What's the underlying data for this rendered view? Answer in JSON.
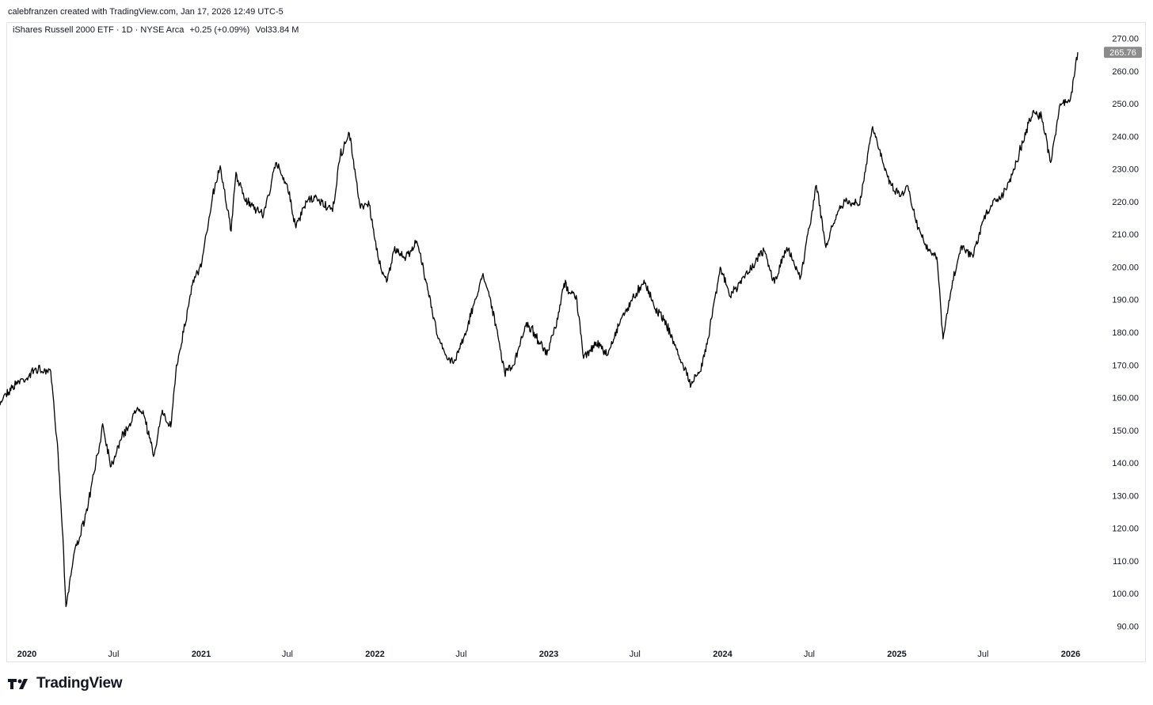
{
  "header": {
    "caption": "calebfranzen created with TradingView.com, Jan 17, 2026 12:49 UTC-5"
  },
  "legend": {
    "symbol": "iShares Russell 2000 ETF · 1D · NYSE Arca",
    "change": "+0.25 (+0.09%)",
    "volume": "Vol33.84 M"
  },
  "last_price_label": "265.76",
  "footer": {
    "brand": "TradingView",
    "logo_icon": "tradingview-logo-icon"
  },
  "colors": {
    "line": "#000000",
    "price_badge": "#8c8c8c",
    "border": "#e0e3eb"
  },
  "chart_data": {
    "type": "line",
    "ylim": [
      85,
      275
    ],
    "y_ticks": [
      90,
      100,
      110,
      120,
      130,
      140,
      150,
      160,
      170,
      180,
      190,
      200,
      210,
      220,
      230,
      240,
      250,
      260,
      270
    ],
    "y_tick_labels": [
      "90.00",
      "100.00",
      "110.00",
      "120.00",
      "130.00",
      "140.00",
      "150.00",
      "160.00",
      "170.00",
      "180.00",
      "190.00",
      "200.00",
      "210.00",
      "220.00",
      "230.00",
      "240.00",
      "250.00",
      "260.00",
      "270.00"
    ],
    "x_tick_labels": [
      {
        "label": "2020",
        "x": "2020-01-01",
        "major": true
      },
      {
        "label": "Jul",
        "x": "2020-07-01",
        "major": false
      },
      {
        "label": "2021",
        "x": "2021-01-01",
        "major": true
      },
      {
        "label": "Jul",
        "x": "2021-07-01",
        "major": false
      },
      {
        "label": "2022",
        "x": "2022-01-01",
        "major": true
      },
      {
        "label": "Jul",
        "x": "2022-07-01",
        "major": false
      },
      {
        "label": "2023",
        "x": "2023-01-01",
        "major": true
      },
      {
        "label": "Jul",
        "x": "2023-07-01",
        "major": false
      },
      {
        "label": "2024",
        "x": "2024-01-01",
        "major": true
      },
      {
        "label": "Jul",
        "x": "2024-07-01",
        "major": false
      },
      {
        "label": "2025",
        "x": "2025-01-01",
        "major": true
      },
      {
        "label": "Jul",
        "x": "2025-07-01",
        "major": false
      },
      {
        "label": "2026",
        "x": "2026-01-01",
        "major": true
      }
    ],
    "series": [
      {
        "x": [
          "2019-11-01",
          "2019-11-15",
          "2019-12-01",
          "2019-12-15",
          "2020-01-01",
          "2020-01-20",
          "2020-02-01",
          "2020-02-20",
          "2020-03-05",
          "2020-03-18",
          "2020-03-23",
          "2020-04-10",
          "2020-05-01",
          "2020-06-01",
          "2020-06-08",
          "2020-06-26",
          "2020-07-15",
          "2020-08-01",
          "2020-08-20",
          "2020-09-01",
          "2020-09-23",
          "2020-10-10",
          "2020-10-29",
          "2020-11-10",
          "2020-11-25",
          "2020-12-15",
          "2021-01-01",
          "2021-01-25",
          "2021-02-10",
          "2021-03-05",
          "2021-03-15",
          "2021-04-01",
          "2021-05-12",
          "2021-06-08",
          "2021-07-01",
          "2021-07-19",
          "2021-08-10",
          "2021-09-01",
          "2021-10-04",
          "2021-10-20",
          "2021-11-08",
          "2021-11-30",
          "2021-12-20",
          "2022-01-10",
          "2022-01-27",
          "2022-02-10",
          "2022-03-07",
          "2022-03-29",
          "2022-04-20",
          "2022-05-12",
          "2022-06-01",
          "2022-06-16",
          "2022-07-15",
          "2022-08-16",
          "2022-09-01",
          "2022-09-30",
          "2022-10-20",
          "2022-11-15",
          "2022-12-01",
          "2022-12-28",
          "2023-01-20",
          "2023-02-02",
          "2023-03-01",
          "2023-03-15",
          "2023-04-10",
          "2023-05-04",
          "2023-06-01",
          "2023-07-20",
          "2023-08-10",
          "2023-09-01",
          "2023-10-01",
          "2023-10-27",
          "2023-11-15",
          "2023-12-01",
          "2023-12-27",
          "2024-01-17",
          "2024-02-15",
          "2024-03-28",
          "2024-04-19",
          "2024-05-15",
          "2024-06-13",
          "2024-07-16",
          "2024-08-05",
          "2024-08-30",
          "2024-09-15",
          "2024-10-15",
          "2024-11-11",
          "2024-11-25",
          "2024-12-20",
          "2025-01-10",
          "2025-01-23",
          "2025-02-15",
          "2025-03-10",
          "2025-03-26",
          "2025-04-08",
          "2025-04-25",
          "2025-05-15",
          "2025-06-10",
          "2025-07-01",
          "2025-07-25",
          "2025-08-01",
          "2025-08-25",
          "2025-09-15",
          "2025-10-15",
          "2025-11-01",
          "2025-11-20",
          "2025-12-10",
          "2025-12-31",
          "2026-01-16"
        ],
        "y": [
          157,
          161,
          163,
          165,
          166,
          169,
          168,
          168,
          146,
          113,
          96,
          113,
          122,
          145,
          152,
          139,
          147,
          151,
          157,
          156,
          142,
          155,
          151,
          170,
          180,
          196,
          200,
          222,
          231,
          211,
          229,
          221,
          216,
          232,
          225,
          212,
          220,
          221,
          217,
          234,
          241,
          219,
          219,
          201,
          196,
          205,
          203,
          208,
          195,
          179,
          172,
          171,
          182,
          198,
          190,
          168,
          170,
          183,
          180,
          173,
          184,
          195,
          190,
          172,
          177,
          173,
          184,
          196,
          188,
          184,
          173,
          164,
          168,
          178,
          200,
          191,
          197,
          205,
          195,
          206,
          197,
          225,
          206,
          217,
          220,
          219,
          243,
          236,
          225,
          222,
          225,
          212,
          205,
          203,
          178,
          193,
          206,
          203,
          214,
          221,
          220,
          226,
          235,
          248,
          246,
          232,
          250,
          251,
          265.76
        ]
      }
    ]
  }
}
